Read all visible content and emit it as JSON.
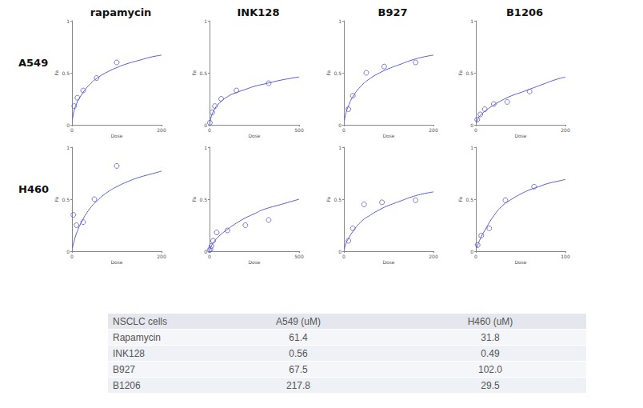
{
  "column_labels": [
    "rapamycin",
    "INK128",
    "B927",
    "B1206"
  ],
  "row_labels": [
    "A549",
    "H460"
  ],
  "chart_data": [
    {
      "type": "scatter",
      "xlabel": "Dose",
      "ylabel": "Fa",
      "xlim": [
        0,
        200
      ],
      "xticks": [
        0,
        200
      ],
      "ylim": [
        0,
        1
      ],
      "yticks": [
        0,
        0.5,
        1
      ],
      "grid": false,
      "series": [
        {
          "type": "scatter",
          "marker": "open_circle",
          "color": "#5a5ad2",
          "x": [
            5,
            12,
            25,
            55,
            100
          ],
          "values": [
            0.18,
            0.26,
            0.33,
            0.45,
            0.6
          ]
        },
        {
          "type": "line",
          "line_style": "solid",
          "color": "#5a5ad2",
          "x": [
            1,
            5,
            10,
            20,
            40,
            60,
            80,
            100,
            125,
            150,
            175,
            200
          ],
          "values": [
            0.05,
            0.14,
            0.2,
            0.28,
            0.39,
            0.46,
            0.51,
            0.55,
            0.59,
            0.62,
            0.65,
            0.67
          ]
        }
      ]
    },
    {
      "type": "scatter",
      "xlabel": "Dose",
      "ylabel": "Fa",
      "xlim": [
        0,
        500
      ],
      "xticks": [
        0,
        500
      ],
      "ylim": [
        0,
        1
      ],
      "yticks": [
        0,
        0.5,
        1
      ],
      "grid": false,
      "series": [
        {
          "type": "scatter",
          "marker": "open_circle",
          "color": "#5a5ad2",
          "x": [
            2,
            15,
            30,
            65,
            150,
            330
          ],
          "values": [
            0.02,
            0.12,
            0.18,
            0.25,
            0.33,
            0.4
          ]
        },
        {
          "type": "line",
          "line_style": "solid",
          "color": "#5a5ad2",
          "x": [
            1,
            10,
            25,
            50,
            100,
            150,
            200,
            250,
            300,
            400,
            500
          ],
          "values": [
            0.01,
            0.08,
            0.14,
            0.2,
            0.27,
            0.31,
            0.34,
            0.37,
            0.39,
            0.43,
            0.46
          ]
        }
      ]
    },
    {
      "type": "scatter",
      "xlabel": "Dose",
      "ylabel": "Fa",
      "xlim": [
        0,
        200
      ],
      "xticks": [
        0,
        200
      ],
      "ylim": [
        0,
        1
      ],
      "yticks": [
        0,
        0.5,
        1
      ],
      "grid": false,
      "series": [
        {
          "type": "scatter",
          "marker": "open_circle",
          "color": "#5a5ad2",
          "x": [
            10,
            20,
            50,
            90,
            160
          ],
          "values": [
            0.15,
            0.28,
            0.5,
            0.56,
            0.6
          ]
        },
        {
          "type": "line",
          "line_style": "solid",
          "color": "#5a5ad2",
          "x": [
            1,
            5,
            10,
            20,
            40,
            60,
            80,
            100,
            125,
            150,
            175,
            200
          ],
          "values": [
            0.04,
            0.12,
            0.18,
            0.27,
            0.38,
            0.45,
            0.5,
            0.54,
            0.58,
            0.62,
            0.65,
            0.67
          ]
        }
      ]
    },
    {
      "type": "scatter",
      "xlabel": "Dose",
      "ylabel": "Fa",
      "xlim": [
        0,
        200
      ],
      "xticks": [
        0,
        200
      ],
      "ylim": [
        0,
        1
      ],
      "yticks": [
        0,
        0.5,
        1
      ],
      "grid": false,
      "series": [
        {
          "type": "scatter",
          "marker": "open_circle",
          "color": "#5a5ad2",
          "x": [
            3,
            10,
            20,
            40,
            70,
            120
          ],
          "values": [
            0.05,
            0.1,
            0.15,
            0.2,
            0.22,
            0.32
          ]
        },
        {
          "type": "line",
          "line_style": "solid",
          "color": "#5a5ad2",
          "x": [
            1,
            5,
            10,
            20,
            40,
            60,
            80,
            100,
            125,
            150,
            175,
            200
          ],
          "values": [
            0.02,
            0.06,
            0.09,
            0.13,
            0.19,
            0.24,
            0.28,
            0.31,
            0.35,
            0.39,
            0.43,
            0.46
          ]
        }
      ]
    },
    {
      "type": "scatter",
      "xlabel": "Dose",
      "ylabel": "Fa",
      "xlim": [
        0,
        200
      ],
      "xticks": [
        0,
        200
      ],
      "ylim": [
        0,
        1
      ],
      "yticks": [
        0,
        0.5,
        1
      ],
      "grid": false,
      "series": [
        {
          "type": "scatter",
          "marker": "open_circle",
          "color": "#5a5ad2",
          "x": [
            3,
            10,
            25,
            50,
            100
          ],
          "values": [
            0.35,
            0.25,
            0.28,
            0.5,
            0.82
          ]
        },
        {
          "type": "line",
          "line_style": "solid",
          "color": "#5a5ad2",
          "x": [
            1,
            5,
            10,
            20,
            40,
            60,
            80,
            100,
            125,
            150,
            175,
            200
          ],
          "values": [
            0.03,
            0.1,
            0.17,
            0.27,
            0.41,
            0.5,
            0.57,
            0.62,
            0.67,
            0.71,
            0.74,
            0.77
          ]
        }
      ]
    },
    {
      "type": "scatter",
      "xlabel": "Dose",
      "ylabel": "Fa",
      "xlim": [
        0,
        500
      ],
      "xticks": [
        0,
        500
      ],
      "ylim": [
        0,
        1
      ],
      "yticks": [
        0,
        0.5,
        1
      ],
      "grid": false,
      "series": [
        {
          "type": "scatter",
          "marker": "open_circle",
          "color": "#5a5ad2",
          "x": [
            0,
            5,
            10,
            20,
            40,
            100,
            200,
            330
          ],
          "values": [
            0.01,
            0.02,
            0.05,
            0.1,
            0.18,
            0.2,
            0.25,
            0.3
          ]
        },
        {
          "type": "line",
          "line_style": "solid",
          "color": "#5a5ad2",
          "x": [
            1,
            10,
            25,
            50,
            100,
            150,
            200,
            250,
            300,
            400,
            500
          ],
          "values": [
            0.01,
            0.05,
            0.09,
            0.14,
            0.21,
            0.27,
            0.32,
            0.36,
            0.4,
            0.45,
            0.5
          ]
        }
      ]
    },
    {
      "type": "scatter",
      "xlabel": "Dose",
      "ylabel": "Fa",
      "xlim": [
        0,
        200
      ],
      "xticks": [
        0,
        200
      ],
      "ylim": [
        0,
        1
      ],
      "yticks": [
        0,
        0.5,
        1
      ],
      "grid": false,
      "series": [
        {
          "type": "scatter",
          "marker": "open_circle",
          "color": "#5a5ad2",
          "x": [
            10,
            20,
            45,
            85,
            160
          ],
          "values": [
            0.1,
            0.22,
            0.45,
            0.47,
            0.49
          ]
        },
        {
          "type": "line",
          "line_style": "solid",
          "color": "#5a5ad2",
          "x": [
            1,
            5,
            10,
            20,
            40,
            60,
            80,
            100,
            125,
            150,
            175,
            200
          ],
          "values": [
            0.02,
            0.08,
            0.12,
            0.19,
            0.29,
            0.35,
            0.4,
            0.44,
            0.48,
            0.52,
            0.55,
            0.57
          ]
        }
      ]
    },
    {
      "type": "scatter",
      "xlabel": "Dose",
      "ylabel": "Fa",
      "xlim": [
        0,
        100
      ],
      "xticks": [
        0,
        100
      ],
      "ylim": [
        0,
        1
      ],
      "yticks": [
        0,
        0.5,
        1
      ],
      "grid": false,
      "series": [
        {
          "type": "scatter",
          "marker": "open_circle",
          "color": "#5a5ad2",
          "x": [
            2,
            6,
            15,
            33,
            65
          ],
          "values": [
            0.06,
            0.15,
            0.22,
            0.49,
            0.62
          ]
        },
        {
          "type": "line",
          "line_style": "solid",
          "color": "#5a5ad2",
          "x": [
            1,
            5,
            10,
            20,
            30,
            40,
            50,
            60,
            70,
            80,
            90,
            100
          ],
          "values": [
            0.03,
            0.12,
            0.2,
            0.34,
            0.44,
            0.5,
            0.55,
            0.59,
            0.62,
            0.65,
            0.67,
            0.69
          ]
        }
      ]
    }
  ],
  "table": {
    "header": [
      "NSCLC cells",
      "A549 (uM)",
      "H460 (uM)"
    ],
    "rows": [
      [
        "Rapamycin",
        "61.4",
        "31.8"
      ],
      [
        "INK128",
        "0.56",
        "0.49"
      ],
      [
        "B927",
        "67.5",
        "102.0"
      ],
      [
        "B1206",
        "217.8",
        "29.5"
      ]
    ]
  }
}
